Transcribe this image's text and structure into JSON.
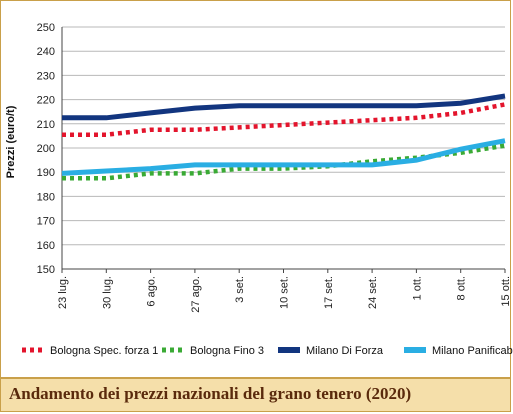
{
  "chart_data": {
    "type": "line",
    "title": "Andamento dei prezzi nazionali del grano tenero (2020)",
    "xlabel": "",
    "ylabel": "Prezzi (euro/t)",
    "ylim": [
      150,
      250
    ],
    "yticks": [
      150,
      160,
      170,
      180,
      190,
      200,
      210,
      220,
      230,
      240,
      250
    ],
    "grid": "horizontal",
    "legend": "bottom",
    "categories": [
      "23 lug.",
      "30 lug.",
      "6 ago.",
      "27 ago.",
      "3 set.",
      "10 set.",
      "17 set.",
      "24 set.",
      "1 ott.",
      "8 ott.",
      "15 ott."
    ],
    "series": [
      {
        "name": "Bologna Spec. forza 1",
        "color": "#e3142c",
        "style": "dotted",
        "values": [
          205.5,
          205.5,
          207.5,
          207.5,
          208.5,
          209.5,
          210.5,
          211.5,
          212.5,
          214.5,
          218
        ]
      },
      {
        "name": "Bologna Fino 3",
        "color": "#3aaa35",
        "style": "dotted",
        "values": [
          187.5,
          187.5,
          189.5,
          189.5,
          191.5,
          191.5,
          192.5,
          194.5,
          196,
          198,
          201
        ]
      },
      {
        "name": "Milano Di Forza",
        "color": "#12357f",
        "style": "solid",
        "values": [
          212.5,
          212.5,
          214.5,
          216.5,
          217.5,
          217.5,
          217.5,
          217.5,
          217.5,
          218.5,
          221.5
        ]
      },
      {
        "name": "Milano Panificabile",
        "color": "#2aaee3",
        "style": "solid",
        "values": [
          189.5,
          190.5,
          191.5,
          193,
          193,
          193,
          193,
          193,
          195,
          199.5,
          203
        ]
      }
    ]
  }
}
